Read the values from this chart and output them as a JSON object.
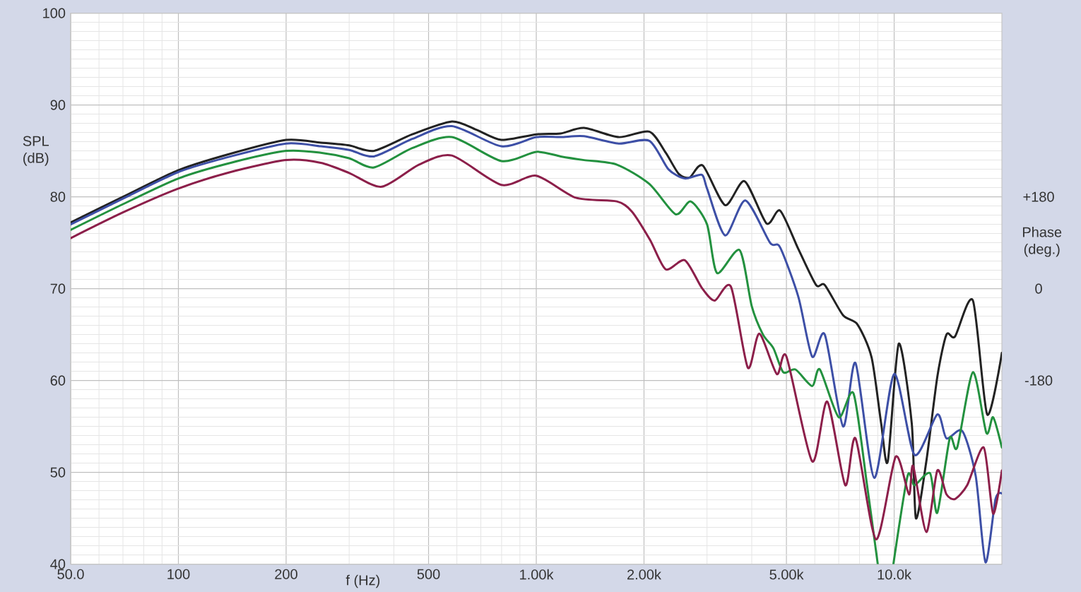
{
  "chart_data": {
    "type": "line",
    "xlabel": "f (Hz)",
    "ylabel": "SPL (dB)",
    "y2label": "Phase (deg.)",
    "log": "x",
    "grid": true,
    "xlim": [
      50,
      20000
    ],
    "xticks": [
      {
        "value": 50,
        "label": "50.0"
      },
      100,
      200,
      500,
      {
        "value": 1000,
        "label": "1.00k"
      },
      {
        "value": 2000,
        "label": "2.00k"
      },
      {
        "value": 5000,
        "label": "5.00k"
      },
      {
        "value": 10000,
        "label": "10.0k"
      }
    ],
    "ylim": [
      40,
      100
    ],
    "yticks": [
      40,
      50,
      60,
      70,
      80,
      90,
      100
    ],
    "y2lim": [
      -540,
      540
    ],
    "y2ticks": [
      {
        "value": 180,
        "label": "+180"
      },
      0,
      -180
    ],
    "series": [
      {
        "color": "#222222",
        "x": [
          50,
          70,
          100,
          140,
          200,
          250,
          300,
          352,
          450,
          581,
          680,
          799,
          1000,
          1170,
          1360,
          1700,
          2070,
          2300,
          2500,
          2680,
          2920,
          3370,
          3820,
          4400,
          4800,
          5400,
          6050,
          6400,
          7200,
          7900,
          8650,
          9200,
          9600,
          10300,
          11200,
          11500,
          12300,
          13200,
          14000,
          14800,
          16600,
          18200,
          20000
        ],
        "values": [
          77.2,
          80.0,
          82.9,
          84.7,
          86.2,
          85.9,
          85.6,
          85.0,
          86.8,
          88.2,
          87.3,
          86.2,
          86.8,
          86.9,
          87.5,
          86.5,
          87.1,
          84.8,
          82.5,
          82.1,
          83.4,
          79.1,
          81.7,
          77.1,
          78.5,
          74.3,
          70.4,
          70.4,
          67.1,
          66.1,
          62.5,
          55.3,
          51.2,
          64.0,
          55.3,
          45.0,
          51.2,
          60.4,
          65.0,
          64.8,
          68.7,
          56.3,
          63.0
        ]
      },
      {
        "color": "#3d4fa6",
        "x": [
          50,
          70,
          100,
          140,
          200,
          250,
          300,
          352,
          450,
          581,
          799,
          1000,
          1170,
          1360,
          1700,
          2070,
          2340,
          2600,
          2900,
          3000,
          3370,
          3840,
          4500,
          4800,
          5400,
          5900,
          6400,
          7200,
          7800,
          8800,
          10000,
          11400,
          13200,
          14000,
          15500,
          16900,
          18000,
          19200,
          20000
        ],
        "values": [
          77.0,
          79.8,
          82.7,
          84.4,
          85.8,
          85.5,
          85.1,
          84.4,
          86.3,
          87.7,
          85.5,
          86.5,
          86.5,
          86.6,
          85.8,
          86.1,
          83.0,
          82.0,
          82.4,
          80.9,
          75.8,
          79.6,
          75.0,
          74.5,
          69.1,
          62.6,
          65.0,
          55.0,
          61.9,
          49.4,
          60.7,
          51.9,
          56.3,
          53.7,
          54.5,
          49.6,
          40.2,
          47.1,
          47.7
        ]
      },
      {
        "color": "#23913f",
        "x": [
          50,
          70,
          100,
          140,
          200,
          250,
          300,
          352,
          450,
          581,
          799,
          1000,
          1170,
          1360,
          1680,
          2070,
          2450,
          2700,
          3000,
          3200,
          3700,
          4000,
          4300,
          4600,
          4900,
          5300,
          5900,
          6200,
          7000,
          7700,
          8400,
          9000,
          9500,
          9950,
          10900,
          11400,
          12600,
          13200,
          14300,
          15000,
          16600,
          18100,
          18900,
          20000
        ],
        "values": [
          76.4,
          79.2,
          82.0,
          83.7,
          85.0,
          84.8,
          84.2,
          83.2,
          85.3,
          86.5,
          83.9,
          84.9,
          84.4,
          84.0,
          83.5,
          81.4,
          78.1,
          79.5,
          77.0,
          71.7,
          74.2,
          68.1,
          65.0,
          63.5,
          60.9,
          61.2,
          59.4,
          61.2,
          56.0,
          58.6,
          48.6,
          40.0,
          null,
          40.0,
          49.6,
          48.6,
          49.9,
          45.6,
          53.7,
          52.7,
          60.9,
          54.3,
          56.0,
          52.7
        ]
      },
      {
        "color": "#8c1f4a",
        "x": [
          50,
          70,
          100,
          140,
          200,
          250,
          300,
          370,
          470,
          581,
          799,
          1000,
          1290,
          1680,
          1850,
          2080,
          2300,
          2600,
          2900,
          3150,
          3500,
          3900,
          4200,
          4700,
          5000,
          5900,
          6500,
          7300,
          7800,
          8900,
          10100,
          11000,
          11300,
          12300,
          13200,
          14000,
          14800,
          16000,
          17800,
          18900,
          20000
        ],
        "values": [
          75.5,
          78.3,
          80.9,
          82.7,
          84.0,
          83.7,
          82.6,
          81.1,
          83.5,
          84.5,
          81.3,
          82.3,
          79.9,
          79.5,
          78.4,
          75.3,
          72.1,
          73.1,
          70.1,
          68.7,
          70.2,
          61.4,
          65.1,
          60.7,
          62.6,
          51.2,
          57.7,
          48.6,
          53.7,
          42.7,
          51.7,
          47.6,
          50.7,
          43.5,
          50.2,
          47.6,
          47.1,
          48.6,
          52.7,
          45.5,
          50.2
        ]
      }
    ]
  }
}
